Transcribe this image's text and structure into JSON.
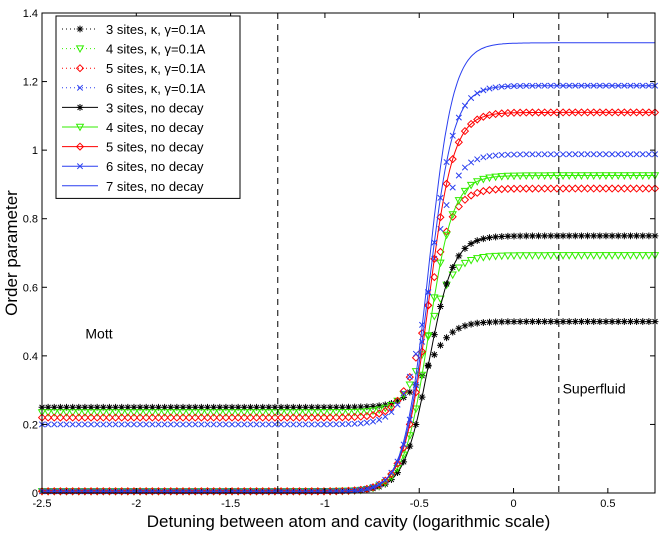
{
  "chart_data": {
    "type": "line",
    "title": "",
    "xlabel": "Detuning between atom and cavity (logarithmic scale)",
    "ylabel": "Order parameter",
    "xlim": [
      -2.5,
      0.75
    ],
    "ylim": [
      0,
      1.4
    ],
    "xticks": [
      -2.5,
      -2,
      -1.5,
      -1,
      -0.5,
      0,
      0.5
    ],
    "xtick_labels": [
      "-2.5",
      "-2",
      "-1.5",
      "-1",
      "-0.5",
      "0",
      "0.5"
    ],
    "yticks": [
      0,
      0.2,
      0.4,
      0.6,
      0.8,
      1,
      1.2,
      1.4
    ],
    "ytick_labels": [
      "0",
      "0.2",
      "0.4",
      "0.6",
      "0.8",
      "1",
      "1.2",
      "1.4"
    ],
    "grid": false,
    "legend_position": "top-left",
    "vlines": [
      -1.25,
      0.24
    ],
    "annotations": [
      {
        "text": "Mott",
        "x": -2.27,
        "y": 0.45
      },
      {
        "text": "Superfluid",
        "x": 0.26,
        "y": 0.29
      }
    ],
    "transition": {
      "center": -0.45,
      "width": 0.065
    },
    "series": [
      {
        "name": "3 sites, κ, γ=0.1A",
        "group": "decay",
        "marker": "star",
        "color": "#000000",
        "low": 0.25,
        "high": 0.5
      },
      {
        "name": "4 sites, κ, γ=0.1A",
        "group": "decay",
        "marker": "triangle-down",
        "color": "#33ee00",
        "low": 0.235,
        "high": 0.693
      },
      {
        "name": "5 sites, κ, γ=0.1A",
        "group": "decay",
        "marker": "diamond",
        "color": "#ff0000",
        "low": 0.22,
        "high": 0.888
      },
      {
        "name": "6 sites, κ, γ=0.1A",
        "group": "decay",
        "marker": "x",
        "color": "#2a3ff0",
        "low": 0.2,
        "high": 0.988
      },
      {
        "name": "3 sites, no decay",
        "group": "nodecay",
        "marker": "star",
        "color": "#000000",
        "low": 0.005,
        "high": 0.75
      },
      {
        "name": "4 sites, no decay",
        "group": "nodecay",
        "marker": "triangle-down",
        "color": "#33ee00",
        "low": 0.005,
        "high": 0.926
      },
      {
        "name": "5 sites, no decay",
        "group": "nodecay",
        "marker": "diamond",
        "color": "#ff0000",
        "low": 0.005,
        "high": 1.11
      },
      {
        "name": "6 sites, no decay",
        "group": "nodecay",
        "marker": "x",
        "color": "#2a3ff0",
        "low": 0.005,
        "high": 1.188
      },
      {
        "name": "7 sites, no decay",
        "group": "nodecay",
        "marker": "none",
        "color": "#2a3ff0",
        "low": 0.0,
        "high": 1.313
      }
    ]
  }
}
